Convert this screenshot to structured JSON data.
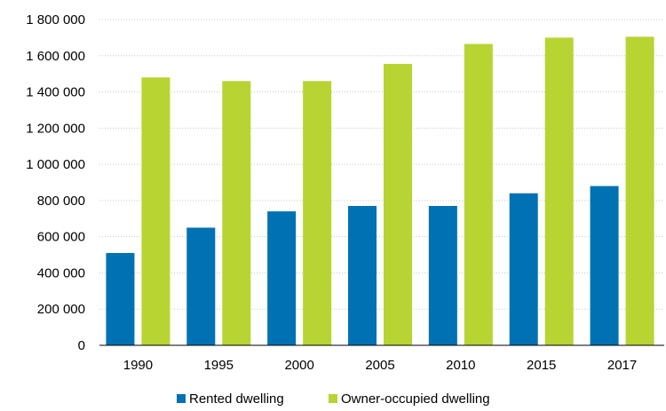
{
  "chart_data": {
    "type": "bar",
    "title": "",
    "xlabel": "",
    "ylabel": "",
    "categories": [
      "1990",
      "1995",
      "2000",
      "2005",
      "2010",
      "2015",
      "2017"
    ],
    "series": [
      {
        "name": "Rented dwelling",
        "values": [
          510000,
          650000,
          740000,
          770000,
          770000,
          840000,
          880000
        ],
        "color": "#0071b2"
      },
      {
        "name": "Owner-occupied dwelling",
        "values": [
          1480000,
          1460000,
          1460000,
          1555000,
          1665000,
          1700000,
          1705000
        ],
        "color": "#b8d432"
      }
    ],
    "ylim": [
      0,
      1800000
    ],
    "yticks": [
      0,
      200000,
      400000,
      600000,
      800000,
      1000000,
      1200000,
      1400000,
      1600000,
      1800000
    ],
    "ytick_labels": [
      "0",
      "200 000",
      "400 000",
      "600 000",
      "800 000",
      "1 000 000",
      "1 200 000",
      "1 400 000",
      "1 600 000",
      "1 800 000"
    ],
    "grid": true,
    "legend_position": "bottom"
  }
}
